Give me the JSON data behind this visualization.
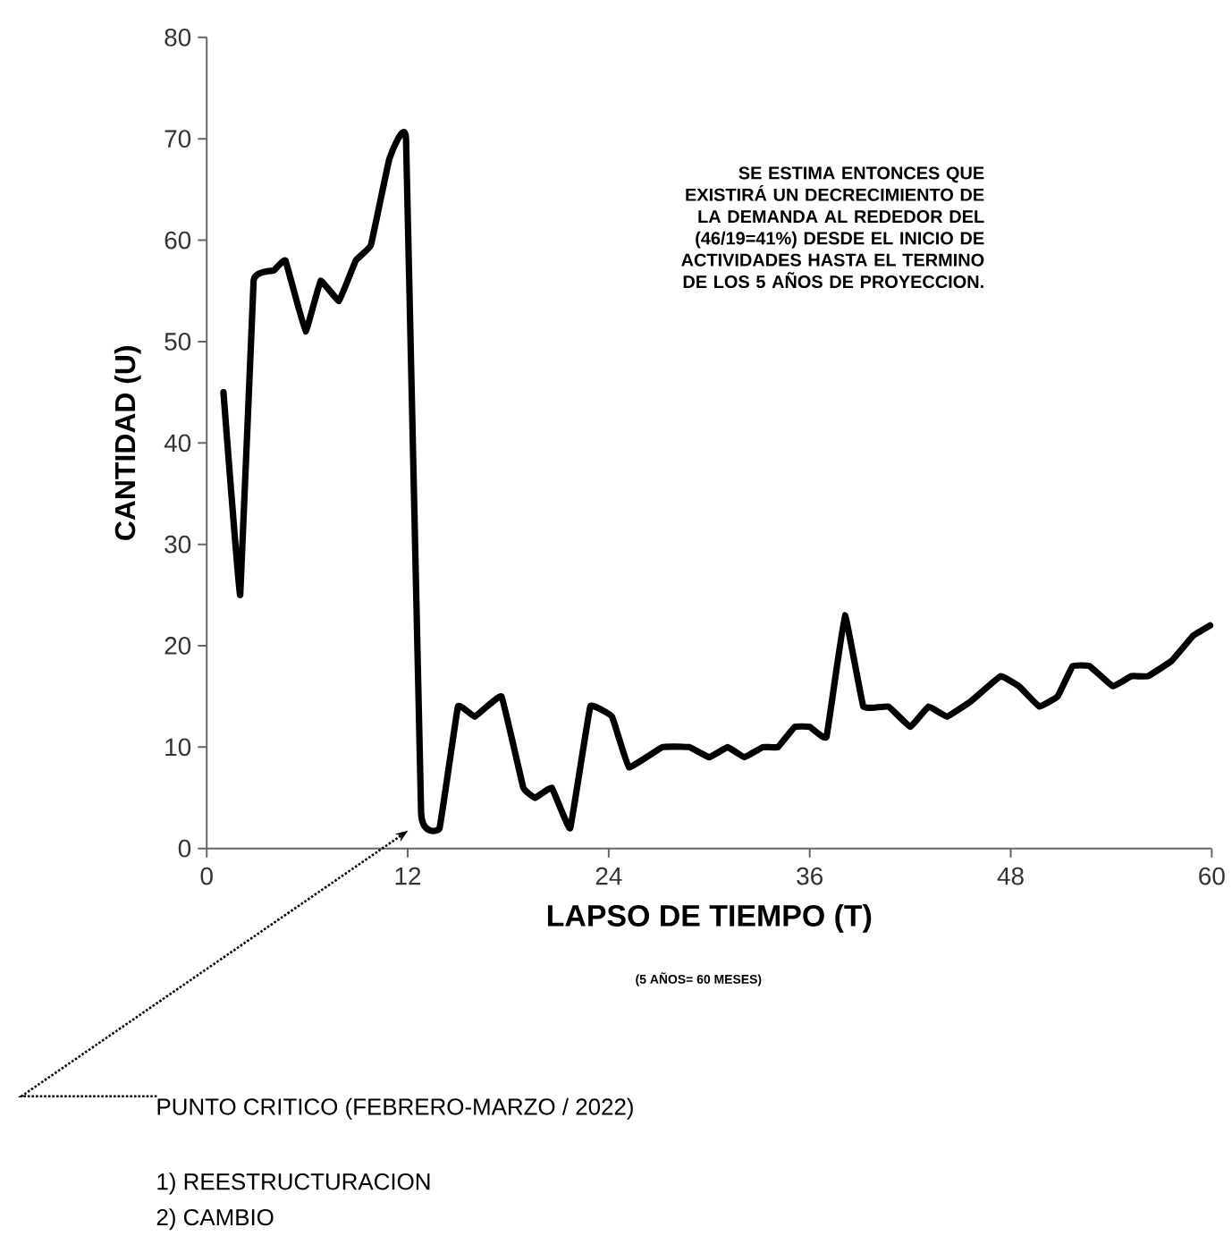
{
  "chart_data": {
    "type": "line",
    "xlabel": "LAPSO DE TIEMPO (T)",
    "ylabel": "CANTIDAD (U)",
    "xlim": [
      0,
      60
    ],
    "xticks": [
      0,
      12,
      24,
      36,
      48,
      60
    ],
    "ylim": [
      0,
      80
    ],
    "yticks": [
      0,
      10,
      20,
      30,
      40,
      50,
      60,
      70,
      80
    ],
    "grid": false,
    "series": [
      {
        "color": "#000000",
        "x": [
          1,
          2,
          2.8,
          4,
          4.7,
          5.9,
          6.8,
          7.9,
          8.9,
          9.8,
          10.9,
          11.9,
          12.8,
          13.9,
          15,
          16,
          17.6,
          18.9,
          19.6,
          20.6,
          21.7,
          22.9,
          24.2,
          25.2,
          27.2,
          28.8,
          30,
          31.1,
          32.1,
          33.2,
          34.1,
          35.1,
          36,
          37,
          38.1,
          39.2,
          40.7,
          42,
          43.1,
          44.2,
          45.6,
          47.4,
          48.5,
          49.7,
          50.8,
          51.7,
          52.7,
          54.1,
          55.2,
          56.2,
          57.6,
          58.9,
          59.9
        ],
        "values": [
          45,
          25,
          56,
          57,
          58,
          51,
          56,
          54,
          58,
          59.5,
          68,
          70,
          3.5,
          2,
          14,
          13,
          15,
          6,
          5,
          6,
          2,
          14,
          13,
          8,
          10,
          10,
          9,
          10,
          9,
          10,
          10,
          12,
          12,
          11,
          23,
          14,
          14,
          12,
          14,
          13,
          14.5,
          17,
          16,
          14,
          15,
          18,
          18,
          16,
          17,
          17,
          18.5,
          21,
          22
        ]
      }
    ],
    "annotations": [
      "SE ESTIMA ENTONCES QUE EXISTIRÁ UN DECRECIMIENTO DE LA DEMANDA AL REDEDOR DEL (46/19=41%) DESDE EL INICIO DE ACTIVIDADES HASTA EL TERMINO DE LOS 5 AÑOS DE PROYECCION.",
      "(5 AÑOS= 60 MESES)",
      "PUNTO CRITICO (FEBRERO-MARZO / 2022)",
      "1) REESTRUCTURACION",
      "2) CAMBIO"
    ]
  }
}
